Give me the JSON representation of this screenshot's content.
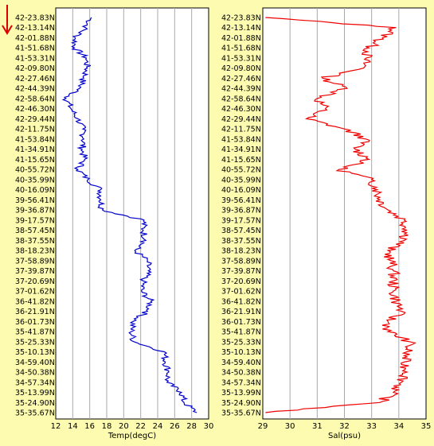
{
  "arrow_icon": "down-arrow-icon",
  "colors": {
    "background": "#fdfbb0",
    "plot_bg": "#ffffff",
    "grid": "#a9a9a9",
    "temp_line": "#0000cc",
    "sal_line": "#ee0000",
    "arrow": "#dd0000"
  },
  "latitudes": [
    "42-23.83N",
    "42-13.14N",
    "42-01.88N",
    "41-51.68N",
    "41-53.31N",
    "42-09.80N",
    "42-27.46N",
    "42-44.39N",
    "42-58.64N",
    "42-46.30N",
    "42-29.44N",
    "42-11.75N",
    "41-53.84N",
    "41-34.91N",
    "41-15.65N",
    "40-55.72N",
    "40-35.99N",
    "40-16.09N",
    "39-56.41N",
    "39-36.87N",
    "39-17.57N",
    "38-57.45N",
    "38-37.55N",
    "38-18.23N",
    "37-58.89N",
    "37-39.87N",
    "37-20.69N",
    "37-01.62N",
    "36-41.82N",
    "36-21.91N",
    "36-01.73N",
    "35-41.87N",
    "35-25.33N",
    "35-10.13N",
    "34-59.40N",
    "34-50.38N",
    "34-57.34N",
    "35-13.99N",
    "35-24.90N",
    "35-35.67N"
  ],
  "chart_data": [
    {
      "type": "line",
      "name": "temperature",
      "xlabel": "Temp(degC)",
      "xlim": [
        12,
        30
      ],
      "xticks": [
        "12",
        "14",
        "16",
        "18",
        "20",
        "22",
        "24",
        "26",
        "28",
        "30"
      ],
      "grid": true,
      "y": "latitudes (top to bottom)",
      "values": [
        16.2,
        15.5,
        14.3,
        14.2,
        15.6,
        15.7,
        15.3,
        14.8,
        13.2,
        13.8,
        14.6,
        15.2,
        15.3,
        15.1,
        15.4,
        14.6,
        15.8,
        17.3,
        17.3,
        17.5,
        22.4,
        22.3,
        22.6,
        21.3,
        22.8,
        22.9,
        22.3,
        22.1,
        23.2,
        22.8,
        21.1,
        20.9,
        21.2,
        24.8,
        24.9,
        25.3,
        25.1,
        26.8,
        27.1,
        28.6
      ]
    },
    {
      "type": "line",
      "name": "salinity",
      "xlabel": "Sal(psu)",
      "xlim": [
        29,
        35
      ],
      "xticks": [
        "29",
        "30",
        "31",
        "32",
        "33",
        "34",
        "35"
      ],
      "grid": true,
      "y": "latitudes (top to bottom)",
      "values": [
        29.1,
        33.9,
        33.4,
        32.9,
        32.8,
        32.7,
        31.2,
        32.1,
        31.0,
        31.3,
        30.6,
        32.0,
        32.8,
        32.4,
        32.9,
        31.8,
        33.0,
        33.2,
        33.3,
        33.6,
        34.2,
        34.3,
        34.2,
        33.6,
        33.7,
        33.8,
        33.8,
        33.8,
        33.9,
        34.1,
        33.6,
        33.6,
        34.4,
        34.3,
        34.2,
        34.3,
        34.1,
        33.8,
        33.3,
        29.1
      ]
    }
  ]
}
